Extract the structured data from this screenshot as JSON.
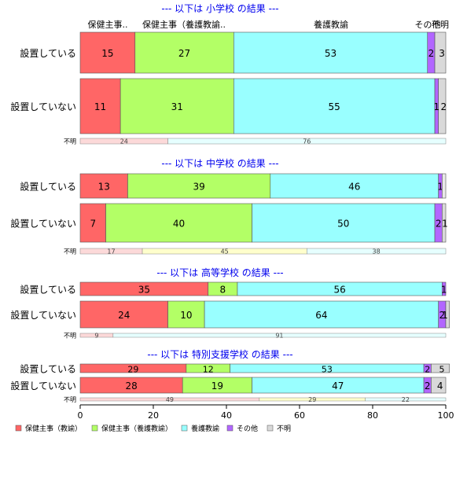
{
  "chart_data": {
    "type": "bar",
    "orientation": "horizontal",
    "stacked": true,
    "xlim": [
      0,
      100
    ],
    "xticks": [
      0,
      20,
      40,
      60,
      80,
      100
    ],
    "top_labels": [
      "保健主事..",
      "保健主事（養護教諭..",
      "養護教諭",
      "その他",
      "不明"
    ],
    "colors": [
      "#ff6666",
      "#b3ff66",
      "#99ffff",
      "#b266ff",
      "#d9d9d9"
    ],
    "legend_position": "bottom-left",
    "legend": [
      "保健主事（教諭）",
      "保健主事（養護教諭）",
      "養護教諭",
      "その他",
      "不明"
    ],
    "groups": [
      {
        "title": "--- 以下は 小学校 の結果 ---",
        "rows": [
          {
            "label": "設置している",
            "values": [
              15,
              27,
              53,
              2,
              3
            ]
          },
          {
            "label": "設置していない",
            "values": [
              11,
              31,
              55,
              1,
              2
            ]
          }
        ],
        "unknown": {
          "label": "不明",
          "values": [
            24,
            0,
            76,
            0,
            0
          ]
        }
      },
      {
        "title": "--- 以下は 中学校 の結果 ---",
        "rows": [
          {
            "label": "設置している",
            "values": [
              13,
              39,
              46,
              1,
              0
            ]
          },
          {
            "label": "設置していない",
            "values": [
              7,
              40,
              50,
              2,
              1
            ]
          }
        ],
        "unknown": {
          "label": "不明",
          "values": [
            17,
            45,
            38,
            0,
            0
          ],
          "colors": [
            "#fcd9d9",
            "#ffffcc",
            "#e6ffff"
          ]
        }
      },
      {
        "title": "--- 以下は 高等学校 の結果 ---",
        "rows": [
          {
            "label": "設置している",
            "values": [
              35,
              8,
              56,
              1,
              0
            ]
          },
          {
            "label": "設置していない",
            "values": [
              24,
              10,
              64,
              2,
              1
            ]
          }
        ],
        "unknown": {
          "label": "不明",
          "values": [
            9,
            0,
            91,
            0,
            0
          ]
        }
      },
      {
        "title": "--- 以下は 特別支援学校 の結果 ---",
        "rows": [
          {
            "label": "設置している",
            "values": [
              29,
              12,
              53,
              2,
              5
            ]
          },
          {
            "label": "設置していない",
            "values": [
              28,
              19,
              47,
              2,
              4
            ]
          }
        ],
        "unknown": {
          "label": "不明",
          "values": [
            49,
            29,
            22,
            0,
            0
          ]
        }
      }
    ]
  }
}
